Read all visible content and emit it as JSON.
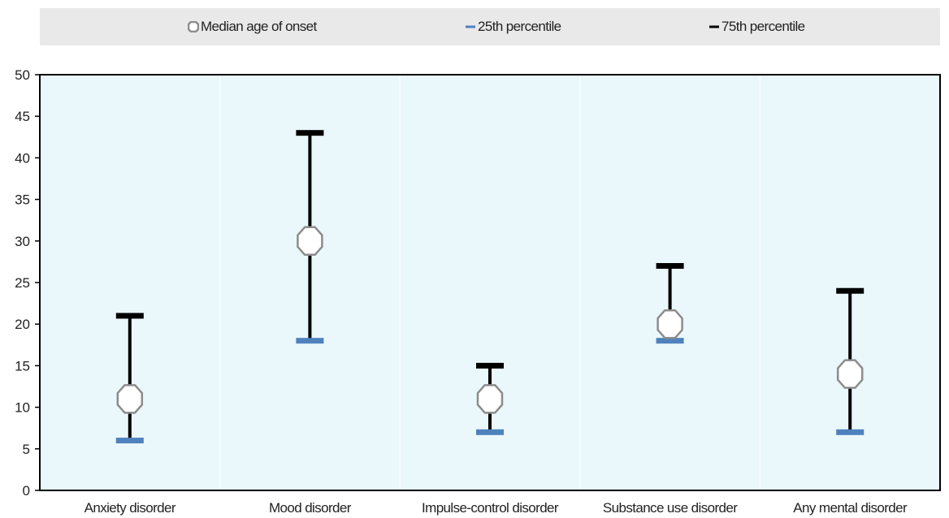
{
  "chart_data": {
    "type": "scatter",
    "title": "",
    "xlabel": "",
    "ylabel": "",
    "categories": [
      "Anxiety disorder",
      "Mood disorder",
      "Impulse-control disorder",
      "Substance use disorder",
      "Any mental disorder"
    ],
    "series": [
      {
        "name": "Median age of onset",
        "values": [
          11,
          30,
          11,
          20,
          14
        ],
        "color": "#ffffff",
        "marker": "octagon"
      },
      {
        "name": "25th percentile",
        "values": [
          6,
          18,
          7,
          18,
          7
        ],
        "color": "#4f81bd",
        "marker": "dash"
      },
      {
        "name": "75th percentile",
        "values": [
          21,
          43,
          15,
          27,
          24
        ],
        "color": "#000000",
        "marker": "dash"
      }
    ],
    "ylim": [
      0,
      50
    ],
    "yticks": [
      0,
      5,
      10,
      15,
      20,
      25,
      30,
      35,
      40,
      45,
      50
    ],
    "grid": false,
    "legend_position": "top",
    "plot_background": "#eaf7fb"
  }
}
